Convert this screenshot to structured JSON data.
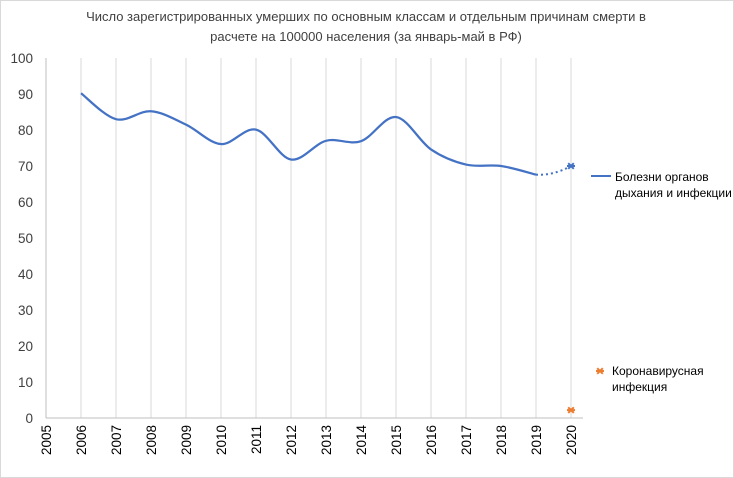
{
  "chart_data": {
    "type": "line",
    "title_lines": [
      "Число зарегистрированных умерших по основным классам и отдельным причинам смерти в",
      "расчете на 100000 населения (за январь-май в РФ)"
    ],
    "xlabel": "",
    "ylabel": "",
    "ylim": [
      0,
      100
    ],
    "y_ticks": [
      "0",
      "10",
      "20",
      "30",
      "40",
      "50",
      "60",
      "70",
      "80",
      "90",
      "100"
    ],
    "x_categories": [
      "2005",
      "2006",
      "2007",
      "2008",
      "2009",
      "2010",
      "2011",
      "2012",
      "2013",
      "2014",
      "2015",
      "2016",
      "2017",
      "2018",
      "2019",
      "2020"
    ],
    "grid": "vertical",
    "legend_position": "right",
    "series": [
      {
        "name_lines": [
          "Болезни органов",
          "дыхания и инфекции"
        ],
        "color": "#4472c4",
        "x": [
          "2006",
          "2007",
          "2008",
          "2009",
          "2010",
          "2011",
          "2012",
          "2013",
          "2014",
          "2015",
          "2016",
          "2017",
          "2018",
          "2019"
        ],
        "values": [
          90.2,
          83.0,
          85.2,
          81.5,
          76.1,
          80.1,
          71.8,
          77.0,
          76.9,
          83.6,
          74.6,
          70.4,
          70.0,
          67.6
        ],
        "forecast": {
          "x": [
            "2019",
            "2020"
          ],
          "values": [
            67.6,
            70.0
          ],
          "style": "dotted",
          "marker_at_end": "asterisk"
        }
      },
      {
        "name_lines": [
          "Коронавирусная",
          "инфекция"
        ],
        "color": "#ed7d31",
        "x": [
          "2020"
        ],
        "values": [
          2.2
        ],
        "marker": "asterisk"
      }
    ]
  }
}
